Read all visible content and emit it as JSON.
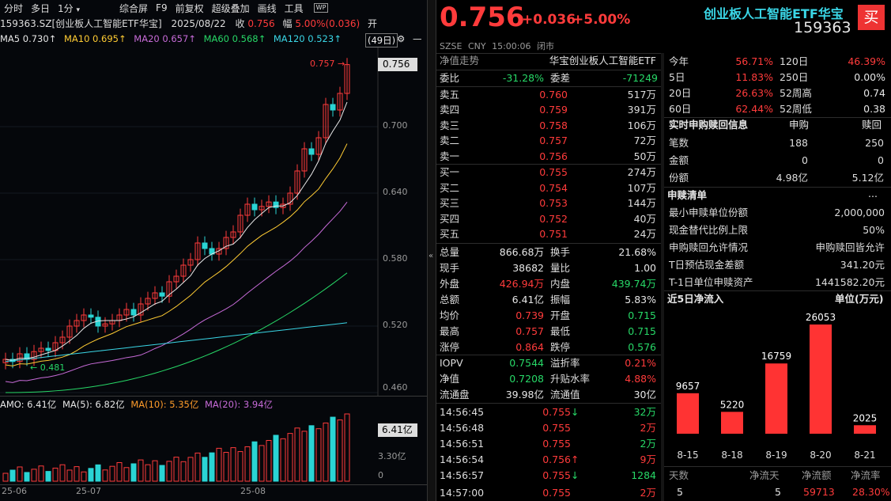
{
  "toolbar": {
    "items": [
      "分时",
      "多日",
      "1分",
      "综合屏",
      "F9",
      "前复权",
      "超级叠加",
      "画线",
      "工具"
    ],
    "arrow": "▾"
  },
  "info": {
    "code_name": "159363.SZ[创业板人工智能ETF华宝]",
    "date": "2025/08/22",
    "close_label": "收",
    "close_val": "0.756",
    "range_label": "幅",
    "range_val": "5.00%(0.036)",
    "open_label": "开"
  },
  "ma": {
    "ma5": "MA5 0.730↑",
    "ma10": "MA10 0.695↑",
    "ma20": "MA20 0.657↑",
    "ma60": "MA60 0.568↑",
    "ma120": "MA120 0.523↑",
    "days": "(49日)"
  },
  "price_axis": [
    "0.700",
    "0.640",
    "0.580",
    "0.520",
    "0.460"
  ],
  "last_price_tag": "0.756",
  "high_mark": "0.757",
  "low_mark": "0.481",
  "vol_bar": {
    "amo": "AMO: 6.41亿",
    "ma5": "MA(5): 6.82亿",
    "ma10": "MA(10): 5.35亿",
    "ma20": "MA(20): 3.94亿",
    "tag": "6.41亿",
    "axis_mid": "3.30亿",
    "axis_zero": "0"
  },
  "date_axis": [
    "25-06",
    "25-07",
    "25-08"
  ],
  "header": {
    "price": "0.756",
    "change": "+0.036",
    "pct": "+5.00%",
    "name": "创业板人工智能ETF华宝",
    "code": "159363",
    "market": "SZSE CNY 15:00:06 闭市",
    "buy_btn": "买"
  },
  "mid": {
    "title_l": "净值走势",
    "title_r": "华宝创业板人工智能ETF",
    "weibi": {
      "l": "委比",
      "v": "-31.28%",
      "l2": "委差",
      "v2": "-71249"
    },
    "asks": [
      [
        "卖五",
        "0.760",
        "517万"
      ],
      [
        "卖四",
        "0.759",
        "391万"
      ],
      [
        "卖三",
        "0.758",
        "106万"
      ],
      [
        "卖二",
        "0.757",
        "72万"
      ],
      [
        "卖一",
        "0.756",
        "50万"
      ]
    ],
    "bids": [
      [
        "买一",
        "0.755",
        "274万"
      ],
      [
        "买二",
        "0.754",
        "107万"
      ],
      [
        "买三",
        "0.753",
        "144万"
      ],
      [
        "买四",
        "0.752",
        "40万"
      ],
      [
        "买五",
        "0.751",
        "24万"
      ]
    ],
    "stats": [
      [
        "总量",
        "866.68万",
        "换手",
        "21.68%"
      ],
      [
        "现手",
        "38682",
        "量比",
        "1.00"
      ],
      [
        "外盘",
        "426.94万",
        "内盘",
        "439.74万"
      ],
      [
        "总额",
        "6.41亿",
        "振幅",
        "5.83%"
      ],
      [
        "均价",
        "0.739",
        "开盘",
        "0.715"
      ],
      [
        "最高",
        "0.757",
        "最低",
        "0.715"
      ],
      [
        "涨停",
        "0.864",
        "跌停",
        "0.576"
      ]
    ],
    "iopv": [
      [
        "IOPV",
        "0.7544",
        "溢折率",
        "0.21%"
      ],
      [
        "净值",
        "0.7208",
        "升贴水率",
        "4.88%"
      ],
      [
        "流通盘",
        "39.98亿",
        "流通值",
        "30亿"
      ]
    ],
    "ticks": [
      [
        "14:56:45",
        "0.755",
        "↓",
        "32万"
      ],
      [
        "14:56:48",
        "0.755",
        "",
        "2万"
      ],
      [
        "14:56:51",
        "0.755",
        "",
        "2万"
      ],
      [
        "14:56:54",
        "0.756",
        "↑",
        "9万"
      ],
      [
        "14:56:57",
        "0.755",
        "↓",
        "1284"
      ],
      [
        "14:57:00",
        "0.755",
        "",
        "2万"
      ]
    ]
  },
  "right": {
    "perf": [
      [
        "今年",
        "56.71%",
        "120日",
        "46.39%"
      ],
      [
        "5日",
        "11.83%",
        "250日",
        "0.00%"
      ],
      [
        "20日",
        "26.63%",
        "52周高",
        "0.74"
      ],
      [
        "60日",
        "62.44%",
        "52周低",
        "0.38"
      ]
    ],
    "sub_title": "实时申购赎回信息",
    "sub_h1": "申购",
    "sub_h2": "赎回",
    "sub_rows": [
      [
        "笔数",
        "188",
        "250"
      ],
      [
        "金额",
        "0",
        "0"
      ],
      [
        "份额",
        "4.98亿",
        "5.12亿"
      ]
    ],
    "list_title": "申赎清单",
    "list_more": "...",
    "list_rows": [
      [
        "最小申赎单位份额",
        "2,000,000"
      ],
      [
        "现金替代比例上限",
        "50%"
      ],
      [
        "申购赎回允许情况",
        "申购赎回皆允许"
      ],
      [
        "T日预估现金差额",
        "341.20元"
      ],
      [
        "T-1日单位申赎资产",
        "1441582.20元"
      ]
    ],
    "flow_title": "近5日净流入",
    "flow_unit": "单位(万元)",
    "flow_footer": {
      "h1": "天数",
      "h2": "净流天",
      "h3": "净流额",
      "h4": "净流率",
      "v1": "5",
      "v2": "5",
      "v3": "59713",
      "v4": "28.30%"
    }
  },
  "chart_data": {
    "type": "bar",
    "categories": [
      "8-15",
      "8-18",
      "8-19",
      "8-20",
      "8-21"
    ],
    "values": [
      9657,
      5220,
      16759,
      26053,
      2025
    ],
    "title": "近5日净流入",
    "ylabel": "单位(万元)"
  }
}
